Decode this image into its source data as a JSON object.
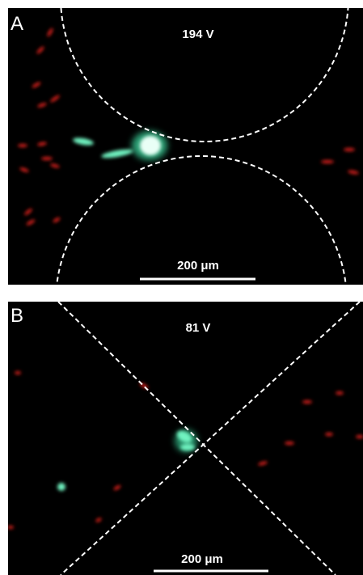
{
  "panels": [
    {
      "label": "A",
      "voltage": "194 V",
      "scale_bar": "200 μm"
    },
    {
      "label": "B",
      "voltage": "81 V",
      "scale_bar": "200 μm"
    }
  ]
}
